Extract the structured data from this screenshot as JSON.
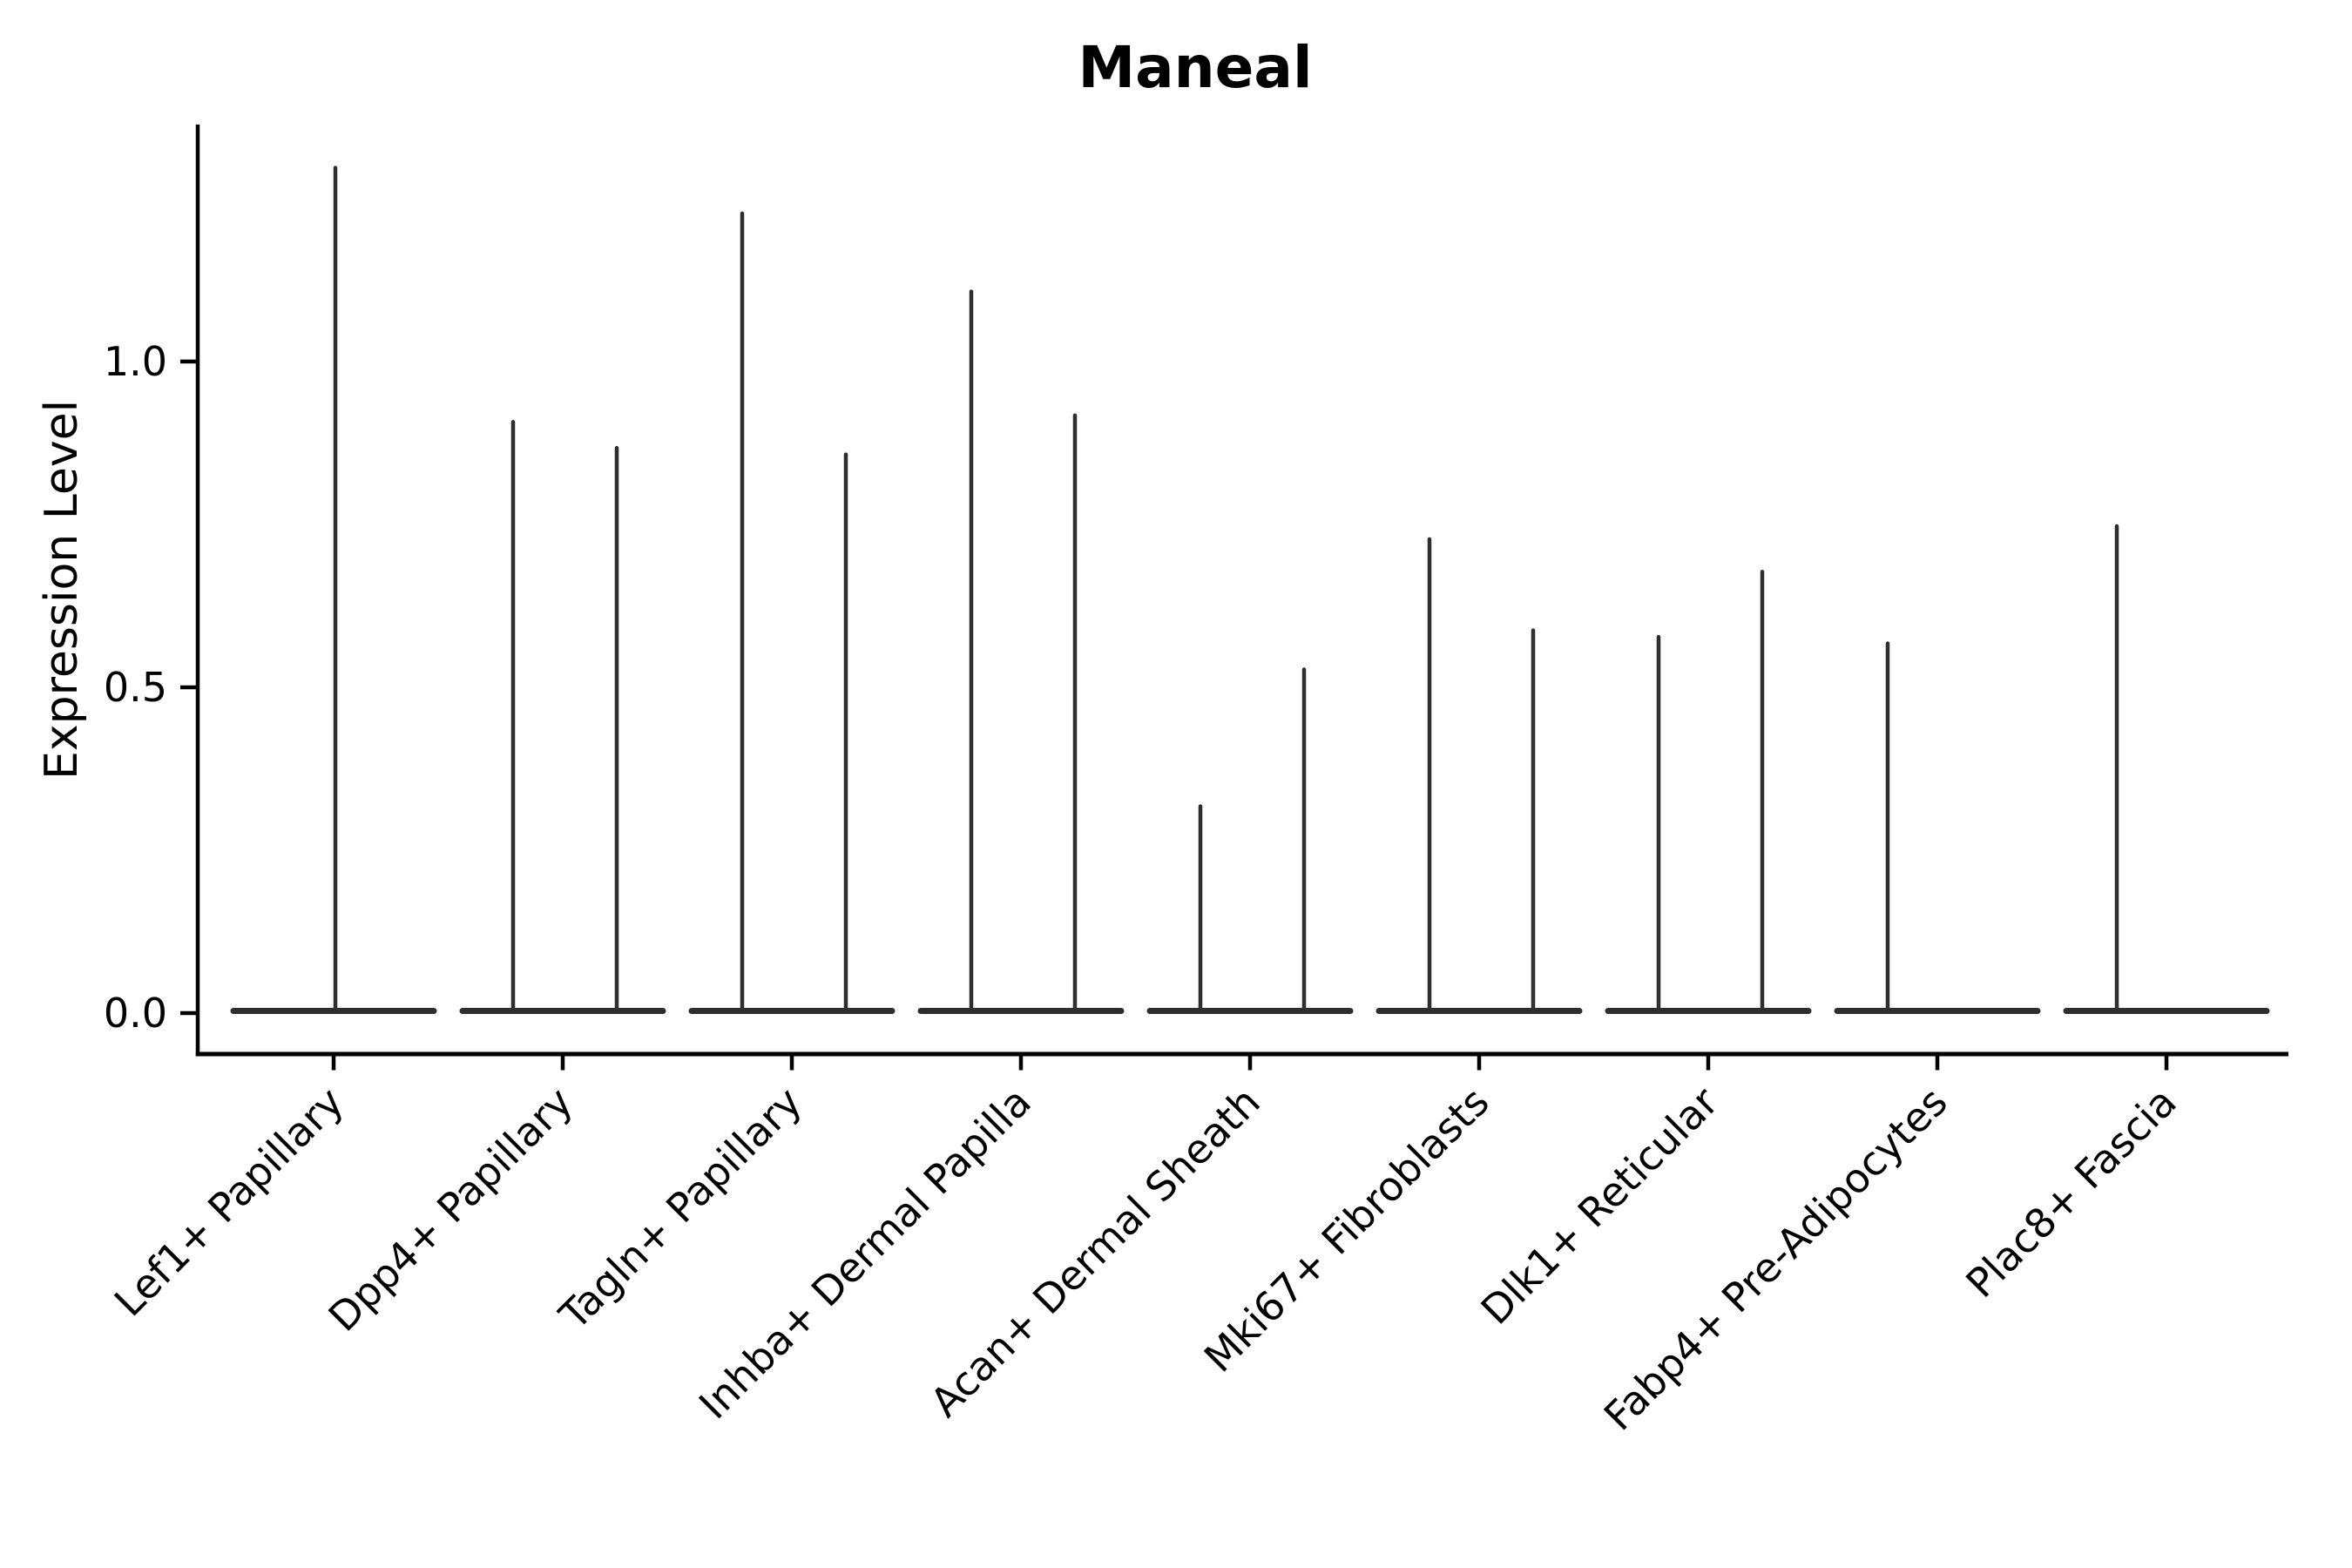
{
  "chart_data": {
    "type": "violin",
    "title": "Maneal",
    "ylabel": "Expression Level",
    "xlabel": "",
    "ylim": [
      -0.06,
      1.36
    ],
    "yticks": [
      "0.0",
      "0.5",
      "1.0"
    ],
    "ytick_values": [
      0.0,
      0.5,
      1.0
    ],
    "grid": false,
    "legend_position": "none",
    "colors": {
      "violin": "#2e2e2e",
      "axis": "#000000",
      "background": "#ffffff",
      "text": "#000000"
    },
    "categories": [
      "Lef1+ Papillary",
      "Dpp4+ Papillary",
      "Tagln+ Papillary",
      "Inhba+ Dermal Papilla",
      "Acan+ Dermal Sheath",
      "Mki67+ Fibroblasts",
      "Dlk1+ Reticular",
      "Fabp4+ Pre-Adipocytes",
      "Plac8+ Fascia"
    ],
    "violins": [
      {
        "category": "Lef1+ Papillary",
        "baseline_value": 0.0,
        "spikes": [
          {
            "side": "center",
            "peak": 1.3
          }
        ]
      },
      {
        "category": "Dpp4+ Papillary",
        "baseline_value": 0.0,
        "spikes": [
          {
            "side": "left",
            "peak": 0.91
          },
          {
            "side": "right",
            "peak": 0.87
          }
        ]
      },
      {
        "category": "Tagln+ Papillary",
        "baseline_value": 0.0,
        "spikes": [
          {
            "side": "left",
            "peak": 1.23
          },
          {
            "side": "right",
            "peak": 0.86
          }
        ]
      },
      {
        "category": "Inhba+ Dermal Papilla",
        "baseline_value": 0.0,
        "spikes": [
          {
            "side": "left",
            "peak": 1.11
          },
          {
            "side": "right",
            "peak": 0.92
          }
        ]
      },
      {
        "category": "Acan+ Dermal Sheath",
        "baseline_value": 0.0,
        "spikes": [
          {
            "side": "left",
            "peak": 0.32
          },
          {
            "side": "right",
            "peak": 0.53
          }
        ]
      },
      {
        "category": "Mki67+ Fibroblasts",
        "baseline_value": 0.0,
        "spikes": [
          {
            "side": "left",
            "peak": 0.73
          },
          {
            "side": "right",
            "peak": 0.59
          }
        ]
      },
      {
        "category": "Dlk1+ Reticular",
        "baseline_value": 0.0,
        "spikes": [
          {
            "side": "left",
            "peak": 0.58
          },
          {
            "side": "right",
            "peak": 0.68
          }
        ]
      },
      {
        "category": "Fabp4+ Pre-Adipocytes",
        "baseline_value": 0.0,
        "spikes": [
          {
            "side": "left",
            "peak": 0.57
          }
        ]
      },
      {
        "category": "Plac8+ Fascia",
        "baseline_value": 0.0,
        "spikes": [
          {
            "side": "left",
            "peak": 0.75
          }
        ]
      }
    ]
  }
}
